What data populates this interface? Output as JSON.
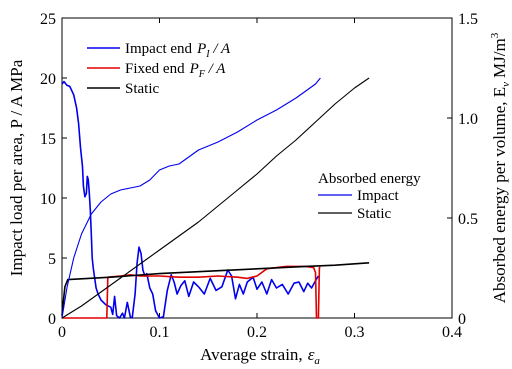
{
  "chart_data": {
    "type": "line",
    "xlabel": "Average strain,",
    "xlabel_symbol": "ε",
    "xlabel_sub": "a",
    "ylabel_left": "Impact load per area,  P / A MPa",
    "ylabel_right": "Absorbed energy per volume,  E",
    "ylabel_right_sub": "v",
    "ylabel_right_unit": "MJ/m",
    "ylabel_right_sup": "3",
    "xlim": [
      0,
      0.4
    ],
    "ylim_left": [
      0,
      25
    ],
    "ylim_right": [
      0,
      1.5
    ],
    "xticks": [
      "0",
      "0.1",
      "0.2",
      "0.3",
      "0.4"
    ],
    "yticks_left": [
      "0",
      "5",
      "10",
      "15",
      "20",
      "25"
    ],
    "yticks_right": [
      "0",
      "0.5",
      "1.0",
      "1.5"
    ],
    "grid": false,
    "legend_top": {
      "placement": "top-left",
      "entries": [
        {
          "label": "Impact end",
          "math": "P",
          "sub": "I",
          "tail": " / A",
          "color": "#0000ee"
        },
        {
          "label": "Fixed end",
          "math": "P",
          "sub": "F",
          "tail": " / A",
          "color": "#e00000"
        },
        {
          "label": "Static",
          "math": "",
          "sub": "",
          "tail": "",
          "color": "#000000"
        }
      ]
    },
    "legend_energy": {
      "title": "Absorbed energy",
      "placement": "center-right",
      "entries": [
        {
          "label": "Impact",
          "color": "#0000ee"
        },
        {
          "label": "Static",
          "color": "#000000"
        }
      ]
    },
    "series": [
      {
        "name": "Impact end",
        "axis": "left",
        "color": "#0000ee",
        "points": [
          [
            0,
            19.5
          ],
          [
            0.002,
            19.7
          ],
          [
            0.005,
            19.4
          ],
          [
            0.008,
            19.3
          ],
          [
            0.012,
            18.6
          ],
          [
            0.015,
            17.5
          ],
          [
            0.017,
            16.2
          ],
          [
            0.019,
            14.2
          ],
          [
            0.021,
            12.6
          ],
          [
            0.022,
            11.0
          ],
          [
            0.0235,
            10.1
          ],
          [
            0.025,
            10.4
          ],
          [
            0.026,
            11.8
          ],
          [
            0.027,
            11.5
          ],
          [
            0.028,
            10.4
          ],
          [
            0.029,
            9.0
          ],
          [
            0.03,
            7.0
          ],
          [
            0.031,
            5.0
          ],
          [
            0.032,
            4.2
          ],
          [
            0.033,
            3.6
          ],
          [
            0.035,
            2.5
          ],
          [
            0.037,
            2.0
          ],
          [
            0.04,
            1.5
          ],
          [
            0.045,
            1.1
          ],
          [
            0.05,
            0.9
          ],
          [
            0.052,
            0.3
          ],
          [
            0.054,
            1.8
          ],
          [
            0.056,
            0.2
          ],
          [
            0.059,
            0.0
          ],
          [
            0.062,
            0.4
          ],
          [
            0.064,
            0.0
          ],
          [
            0.067,
            1.3
          ],
          [
            0.07,
            0.1
          ],
          [
            0.072,
            0.0
          ],
          [
            0.075,
            2.0
          ],
          [
            0.077,
            4.6
          ],
          [
            0.079,
            5.9
          ],
          [
            0.081,
            5.4
          ],
          [
            0.083,
            4.0
          ],
          [
            0.085,
            3.5
          ],
          [
            0.087,
            3.7
          ],
          [
            0.09,
            2.5
          ],
          [
            0.093,
            2.0
          ],
          [
            0.096,
            0.6
          ],
          [
            0.1,
            0.0
          ],
          [
            0.104,
            0.1
          ],
          [
            0.108,
            2.3
          ],
          [
            0.112,
            3.6
          ],
          [
            0.115,
            3.0
          ],
          [
            0.118,
            2.0
          ],
          [
            0.122,
            2.7
          ],
          [
            0.126,
            3.1
          ],
          [
            0.13,
            1.8
          ],
          [
            0.135,
            3.0
          ],
          [
            0.14,
            2.6
          ],
          [
            0.146,
            2.0
          ],
          [
            0.152,
            3.3
          ],
          [
            0.158,
            2.3
          ],
          [
            0.164,
            2.6
          ],
          [
            0.17,
            4.0
          ],
          [
            0.174,
            3.5
          ],
          [
            0.178,
            1.6
          ],
          [
            0.182,
            2.8
          ],
          [
            0.186,
            2.0
          ],
          [
            0.19,
            3.0
          ],
          [
            0.196,
            3.4
          ],
          [
            0.2,
            2.4
          ],
          [
            0.205,
            3.0
          ],
          [
            0.21,
            2.0
          ],
          [
            0.215,
            3.2
          ],
          [
            0.22,
            2.5
          ],
          [
            0.226,
            2.8
          ],
          [
            0.232,
            2.0
          ],
          [
            0.238,
            2.9
          ],
          [
            0.243,
            3.0
          ],
          [
            0.248,
            2.2
          ],
          [
            0.252,
            2.9
          ],
          [
            0.256,
            2.5
          ],
          [
            0.26,
            3.1
          ],
          [
            0.263,
            3.5
          ]
        ]
      },
      {
        "name": "Fixed end",
        "axis": "left",
        "color": "#e00000",
        "points": [
          [
            0,
            0
          ],
          [
            0.046,
            0
          ],
          [
            0.047,
            3.4
          ],
          [
            0.06,
            3.5
          ],
          [
            0.07,
            3.6
          ],
          [
            0.08,
            3.5
          ],
          [
            0.09,
            3.5
          ],
          [
            0.1,
            3.5
          ],
          [
            0.12,
            3.4
          ],
          [
            0.14,
            3.4
          ],
          [
            0.16,
            3.5
          ],
          [
            0.18,
            3.4
          ],
          [
            0.19,
            3.3
          ],
          [
            0.2,
            3.5
          ],
          [
            0.205,
            3.8
          ],
          [
            0.21,
            4.1
          ],
          [
            0.22,
            4.2
          ],
          [
            0.23,
            4.3
          ],
          [
            0.24,
            4.3
          ],
          [
            0.25,
            4.3
          ],
          [
            0.258,
            4.2
          ],
          [
            0.26,
            3.8
          ],
          [
            0.261,
            0
          ],
          [
            0.263,
            0
          ],
          [
            0.264,
            4.2
          ],
          [
            0.265,
            4.2
          ]
        ]
      },
      {
        "name": "Static",
        "axis": "left",
        "color": "#000000",
        "points": [
          [
            0.0,
            0.2
          ],
          [
            0.0015,
            1.5
          ],
          [
            0.003,
            2.6
          ],
          [
            0.006,
            3.2
          ],
          [
            0.05,
            3.4
          ],
          [
            0.1,
            3.7
          ],
          [
            0.15,
            3.9
          ],
          [
            0.2,
            4.1
          ],
          [
            0.25,
            4.3
          ],
          [
            0.28,
            4.4
          ],
          [
            0.315,
            4.6
          ]
        ]
      },
      {
        "name": "Impact",
        "axis": "right",
        "color": "#0000ee",
        "points": [
          [
            0,
            0
          ],
          [
            0.005,
            0.15
          ],
          [
            0.012,
            0.3
          ],
          [
            0.02,
            0.42
          ],
          [
            0.03,
            0.52
          ],
          [
            0.04,
            0.58
          ],
          [
            0.05,
            0.62
          ],
          [
            0.06,
            0.64
          ],
          [
            0.07,
            0.65
          ],
          [
            0.08,
            0.66
          ],
          [
            0.09,
            0.69
          ],
          [
            0.1,
            0.74
          ],
          [
            0.11,
            0.76
          ],
          [
            0.12,
            0.77
          ],
          [
            0.14,
            0.84
          ],
          [
            0.16,
            0.88
          ],
          [
            0.18,
            0.93
          ],
          [
            0.2,
            0.99
          ],
          [
            0.22,
            1.04
          ],
          [
            0.24,
            1.1
          ],
          [
            0.26,
            1.17
          ],
          [
            0.265,
            1.2
          ]
        ]
      },
      {
        "name": "Static",
        "axis": "right",
        "color": "#000000",
        "points": [
          [
            0,
            0
          ],
          [
            0.02,
            0.06
          ],
          [
            0.04,
            0.13
          ],
          [
            0.06,
            0.2
          ],
          [
            0.08,
            0.27
          ],
          [
            0.1,
            0.34
          ],
          [
            0.12,
            0.41
          ],
          [
            0.14,
            0.48
          ],
          [
            0.16,
            0.56
          ],
          [
            0.18,
            0.64
          ],
          [
            0.2,
            0.72
          ],
          [
            0.22,
            0.81
          ],
          [
            0.24,
            0.89
          ],
          [
            0.26,
            0.98
          ],
          [
            0.28,
            1.07
          ],
          [
            0.3,
            1.15
          ],
          [
            0.315,
            1.2
          ]
        ]
      }
    ]
  }
}
